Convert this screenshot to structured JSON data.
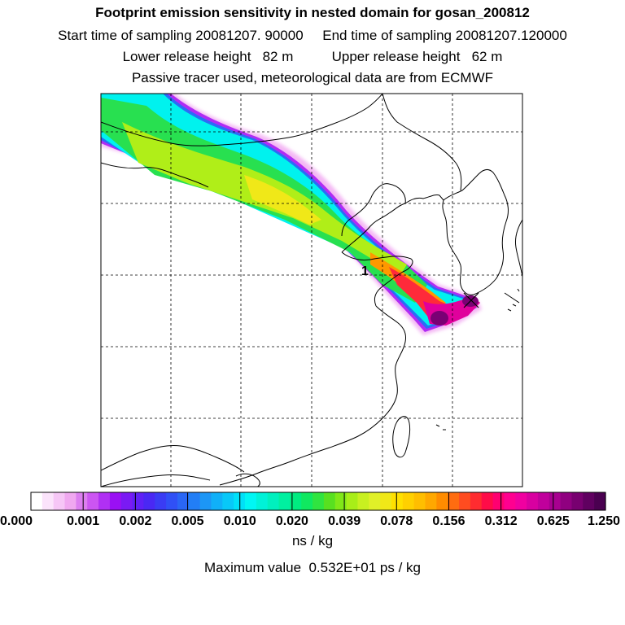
{
  "header": {
    "title": "Footprint emission sensitivity in nested domain for gosan_200812",
    "sampling_line": "Start time of sampling 20081207. 90000     End time of sampling 20081207.120000",
    "release_line": "Lower release height   82 m          Upper release height   62 m",
    "tracer_line": "Passive tracer used, meteorological data are from ECMWF"
  },
  "map": {
    "receptor_label": "1",
    "grid_style": "dashed",
    "coastline_color": "#000000"
  },
  "colorbar": {
    "tick_labels": [
      "0.000",
      "0.001",
      "0.002",
      "0.005",
      "0.010",
      "0.020",
      "0.039",
      "0.078",
      "0.156",
      "0.312",
      "0.625",
      "1.250"
    ],
    "colors": [
      "#ffffff",
      "#fbe3fb",
      "#f6c6f6",
      "#f0a8f0",
      "#dc7ef0",
      "#cc55f2",
      "#b030f4",
      "#9a10f4",
      "#7a1af4",
      "#6020f6",
      "#4a28f4",
      "#3a3cf4",
      "#3050f6",
      "#2a66f6",
      "#227ef6",
      "#1c96f6",
      "#10b0f8",
      "#08c8f8",
      "#00e0f8",
      "#00f6f4",
      "#00f2d8",
      "#00f0be",
      "#00f0a0",
      "#00ec80",
      "#10e860",
      "#30e440",
      "#58e020",
      "#80e818",
      "#a8ee18",
      "#c8f020",
      "#e0f028",
      "#f0e818",
      "#ffe000",
      "#ffd000",
      "#ffbe00",
      "#ffa800",
      "#ff8c00",
      "#ff6c10",
      "#ff4c20",
      "#ff2c30",
      "#ff0c48",
      "#ff0070",
      "#ff0090",
      "#f000a0",
      "#d800a0",
      "#c0009c",
      "#a80090",
      "#900080",
      "#780070",
      "#600060",
      "#4a0050"
    ],
    "unit": "ns / kg"
  },
  "footer": {
    "max_value": "Maximum value  0.532E+01 ps / kg"
  }
}
